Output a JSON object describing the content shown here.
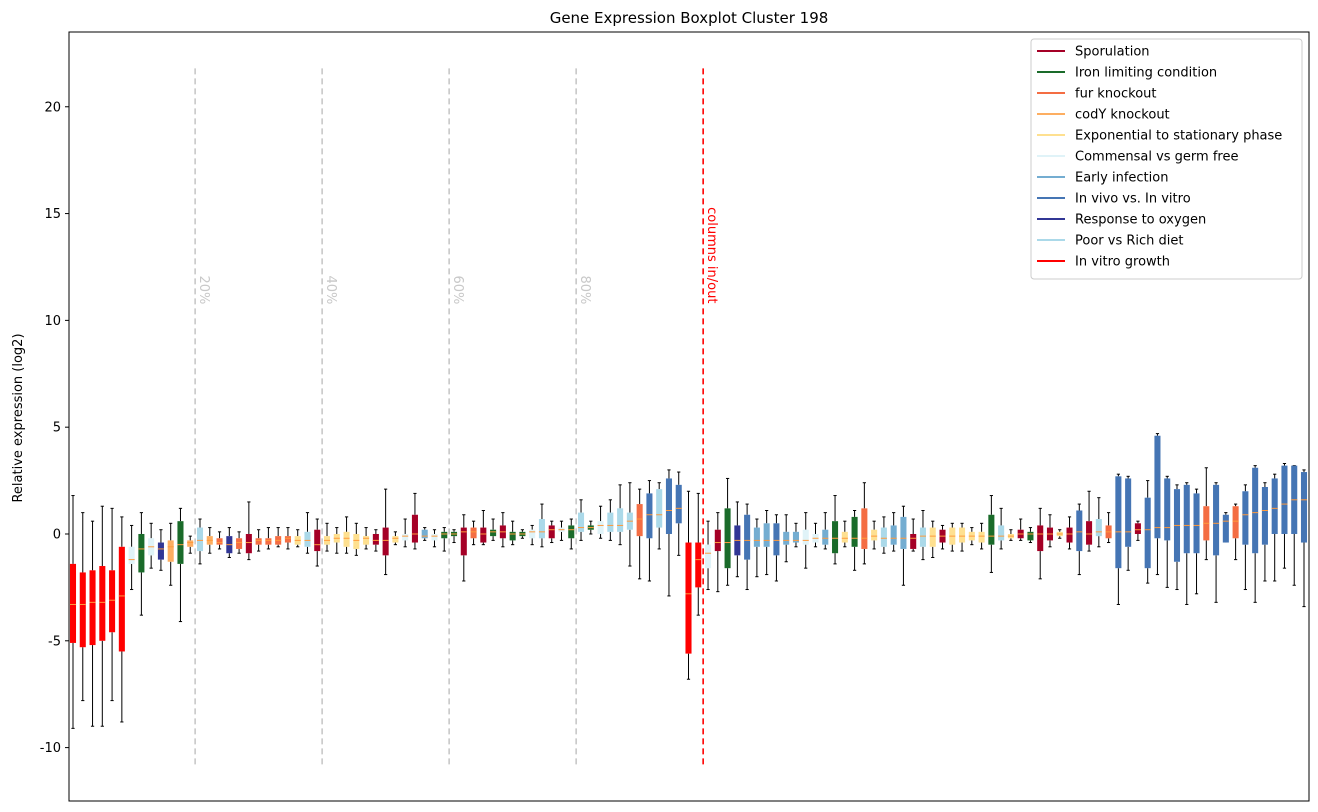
{
  "chart_data": {
    "type": "boxplot",
    "title": "Gene Expression Boxplot Cluster 198",
    "ylabel": "Relative expression (log2)",
    "xlabel": "",
    "ylim": [
      -12.5,
      23.5
    ],
    "yticks": [
      -10,
      -5,
      0,
      5,
      10,
      15,
      20
    ],
    "grid": false,
    "legend_position": "top-right",
    "legend": [
      {
        "name": "Sporulation",
        "color": "#a50026"
      },
      {
        "name": "Iron limiting condition",
        "color": "#1a6b2a"
      },
      {
        "name": "fur knockout",
        "color": "#f46d43"
      },
      {
        "name": "codY knockout",
        "color": "#fdae61"
      },
      {
        "name": "Exponential to stationary phase",
        "color": "#fee090"
      },
      {
        "name": "Commensal vs germ free",
        "color": "#e0f3f8"
      },
      {
        "name": "Early infection",
        "color": "#74add1"
      },
      {
        "name": "In vivo vs. In vitro",
        "color": "#4575b4"
      },
      {
        "name": "Response to oxygen",
        "color": "#313695"
      },
      {
        "name": "Poor vs Rich diet",
        "color": "#abd9e9"
      },
      {
        "name": "In vitro growth",
        "color": "#ff0000"
      }
    ],
    "vlines": [
      {
        "x": 12.5,
        "label": "20%",
        "color": "#c8c8c8"
      },
      {
        "x": 25.5,
        "label": "40%",
        "color": "#c8c8c8"
      },
      {
        "x": 38.5,
        "label": "60%",
        "color": "#c8c8c8"
      },
      {
        "x": 51.5,
        "label": "80%",
        "color": "#c8c8c8"
      },
      {
        "x": 64.5,
        "label": "columns in/out",
        "color": "#ff0000"
      }
    ],
    "box_values": [
      [
        -9.1,
        -5.1,
        -3.3,
        -1.4,
        1.8,
        "#ff0000"
      ],
      [
        -7.8,
        -5.3,
        -3.3,
        -1.8,
        1.0,
        "#ff0000"
      ],
      [
        -9.0,
        -5.2,
        -3.2,
        -1.7,
        0.6,
        "#ff0000"
      ],
      [
        -9.0,
        -5.0,
        -3.2,
        -1.5,
        1.3,
        "#ff0000"
      ],
      [
        -7.8,
        -4.6,
        -3.1,
        -1.7,
        1.2,
        "#ff0000"
      ],
      [
        -8.8,
        -5.5,
        -2.9,
        -0.6,
        0.8,
        "#ff0000"
      ],
      [
        -2.6,
        -1.4,
        -1.2,
        -0.6,
        0.4,
        "#e0f3f8"
      ],
      [
        -3.8,
        -1.8,
        -0.7,
        0.0,
        1.0,
        "#1a6b2a"
      ],
      [
        -1.6,
        -1.0,
        -0.6,
        -0.2,
        0.5,
        "#e0f3f8"
      ],
      [
        -1.7,
        -1.2,
        -0.7,
        -0.4,
        0.2,
        "#313695"
      ],
      [
        -2.4,
        -1.3,
        -0.6,
        -0.3,
        0.5,
        "#fdae61"
      ],
      [
        -4.1,
        -1.4,
        -0.5,
        0.6,
        1.2,
        "#1a6b2a"
      ],
      [
        -0.9,
        -0.6,
        -0.4,
        -0.3,
        -0.1,
        "#fdae61"
      ],
      [
        -1.4,
        -0.8,
        -0.3,
        0.3,
        0.7,
        "#abd9e9"
      ],
      [
        -0.9,
        -0.5,
        -0.3,
        -0.1,
        0.3,
        "#fdae61"
      ],
      [
        -0.7,
        -0.5,
        -0.4,
        -0.2,
        0.1,
        "#f46d43"
      ],
      [
        -1.1,
        -0.9,
        -0.5,
        -0.1,
        0.3,
        "#313695"
      ],
      [
        -0.9,
        -0.7,
        -0.4,
        -0.2,
        0.1,
        "#f46d43"
      ],
      [
        -1.2,
        -0.9,
        -0.4,
        0.0,
        1.5,
        "#a50026"
      ],
      [
        -0.8,
        -0.5,
        -0.3,
        -0.2,
        0.2,
        "#f46d43"
      ],
      [
        -0.7,
        -0.5,
        -0.3,
        -0.2,
        0.3,
        "#f46d43"
      ],
      [
        -0.6,
        -0.5,
        -0.3,
        -0.1,
        0.3,
        "#f46d43"
      ],
      [
        -0.7,
        -0.4,
        -0.2,
        -0.1,
        0.3,
        "#f46d43"
      ],
      [
        -0.6,
        -0.5,
        -0.3,
        -0.1,
        0.2,
        "#fee090"
      ],
      [
        -0.9,
        -0.6,
        -0.3,
        0.1,
        1.0,
        "#abd9e9"
      ],
      [
        -1.5,
        -0.8,
        -0.5,
        0.2,
        0.7,
        "#a50026"
      ],
      [
        -0.8,
        -0.5,
        -0.3,
        -0.1,
        0.5,
        "#fee090"
      ],
      [
        -0.9,
        -0.4,
        -0.2,
        0.0,
        0.3,
        "#fee090"
      ],
      [
        -0.9,
        -0.6,
        -0.2,
        0.1,
        0.8,
        "#fee090"
      ],
      [
        -1.0,
        -0.7,
        -0.3,
        0.0,
        0.5,
        "#fee090"
      ],
      [
        -0.7,
        -0.5,
        -0.2,
        -0.1,
        0.3,
        "#fee090"
      ],
      [
        -0.8,
        -0.5,
        -0.3,
        0.0,
        0.2,
        "#a50026"
      ],
      [
        -1.9,
        -1.0,
        -0.3,
        0.3,
        2.1,
        "#a50026"
      ],
      [
        -0.5,
        -0.4,
        -0.2,
        -0.1,
        0.1,
        "#fee090"
      ],
      [
        -0.6,
        -0.3,
        -0.1,
        0.0,
        0.7,
        "#e0f3f8"
      ],
      [
        -0.7,
        -0.4,
        0.0,
        0.9,
        1.9,
        "#a50026"
      ],
      [
        -0.3,
        -0.2,
        -0.1,
        0.2,
        0.3,
        "#74add1"
      ],
      [
        -0.6,
        -0.3,
        -0.1,
        0.0,
        0.2,
        "#e0f3f8"
      ],
      [
        -0.8,
        -0.2,
        0.0,
        0.1,
        0.3,
        "#1a6b2a"
      ],
      [
        -0.4,
        -0.1,
        0.0,
        0.1,
        0.2,
        "#1a6b2a"
      ],
      [
        -2.2,
        -1.0,
        0.1,
        0.3,
        0.9,
        "#a50026"
      ],
      [
        -0.5,
        -0.2,
        0.1,
        0.3,
        0.6,
        "#f46d43"
      ],
      [
        -0.5,
        -0.4,
        0.0,
        0.3,
        1.1,
        "#a50026"
      ],
      [
        -0.3,
        -0.1,
        0.1,
        0.2,
        0.7,
        "#1a6b2a"
      ],
      [
        -0.6,
        -0.2,
        0.1,
        0.4,
        1.0,
        "#a50026"
      ],
      [
        -0.5,
        -0.3,
        0.0,
        0.1,
        0.6,
        "#1a6b2a"
      ],
      [
        -0.2,
        -0.1,
        0.0,
        0.1,
        0.2,
        "#1a6b2a"
      ],
      [
        -0.5,
        -0.2,
        0.1,
        0.2,
        0.4,
        "#e0f3f8"
      ],
      [
        -0.6,
        -0.2,
        0.1,
        0.7,
        1.4,
        "#abd9e9"
      ],
      [
        -0.4,
        -0.2,
        0.2,
        0.4,
        0.6,
        "#a50026"
      ],
      [
        -0.3,
        0.1,
        0.2,
        0.3,
        0.6,
        "#e0f3f8"
      ],
      [
        -0.7,
        -0.2,
        0.2,
        0.4,
        0.7,
        "#1a6b2a"
      ],
      [
        -0.3,
        0.1,
        0.3,
        1.0,
        1.6,
        "#abd9e9"
      ],
      [
        0.0,
        0.2,
        0.3,
        0.4,
        0.6,
        "#1a6b2a"
      ],
      [
        -0.2,
        0.0,
        0.4,
        0.6,
        1.3,
        "#e0f3f8"
      ],
      [
        -0.3,
        0.1,
        0.4,
        1.0,
        1.6,
        "#abd9e9"
      ],
      [
        -0.5,
        0.1,
        0.4,
        1.2,
        2.3,
        "#abd9e9"
      ],
      [
        -1.5,
        0.2,
        0.6,
        1.0,
        2.4,
        "#abd9e9"
      ],
      [
        -2.1,
        -0.1,
        0.7,
        1.4,
        2.1,
        "#f46d43"
      ],
      [
        -2.2,
        -0.2,
        0.9,
        1.9,
        2.5,
        "#4575b4"
      ],
      [
        -0.7,
        0.3,
        0.9,
        2.1,
        2.4,
        "#abd9e9"
      ],
      [
        -2.9,
        0.0,
        1.1,
        2.6,
        3.0,
        "#4575b4"
      ],
      [
        -1.0,
        0.5,
        1.2,
        2.3,
        2.9,
        "#4575b4"
      ],
      [
        -6.8,
        -5.6,
        -2.8,
        -0.4,
        2.0,
        "#ff0000"
      ],
      [
        -3.8,
        -2.5,
        -1.2,
        -0.4,
        1.9,
        "#ff0000"
      ],
      [
        -2.6,
        -1.6,
        -0.9,
        -0.5,
        0.6,
        "#e0f3f8"
      ],
      [
        -2.7,
        -0.8,
        -0.4,
        0.2,
        1.0,
        "#a50026"
      ],
      [
        -2.4,
        -1.6,
        -0.4,
        1.2,
        2.6,
        "#1a6b2a"
      ],
      [
        -2.0,
        -1.0,
        -0.3,
        0.4,
        1.5,
        "#313695"
      ],
      [
        -2.6,
        -1.2,
        -0.3,
        0.9,
        1.4,
        "#4575b4"
      ],
      [
        -2.0,
        -0.6,
        -0.3,
        0.3,
        0.7,
        "#74add1"
      ],
      [
        -1.9,
        -0.6,
        -0.3,
        0.5,
        1.1,
        "#74add1"
      ],
      [
        -2.2,
        -1.0,
        -0.3,
        0.5,
        0.9,
        "#4575b4"
      ],
      [
        -1.3,
        -0.5,
        -0.3,
        0.1,
        0.9,
        "#74add1"
      ],
      [
        -0.6,
        -0.4,
        -0.3,
        0.1,
        0.5,
        "#74add1"
      ],
      [
        -1.6,
        -0.5,
        -0.3,
        0.2,
        1.0,
        "#e0f3f8"
      ],
      [
        -0.6,
        -0.4,
        -0.2,
        0.0,
        0.5,
        "#e0f3f8"
      ],
      [
        -0.7,
        -0.5,
        -0.2,
        0.2,
        1.0,
        "#74add1"
      ],
      [
        -1.4,
        -0.9,
        -0.2,
        0.6,
        1.8,
        "#1a6b2a"
      ],
      [
        -0.6,
        -0.4,
        -0.2,
        0.1,
        0.6,
        "#fee090"
      ],
      [
        -1.7,
        -0.6,
        -0.2,
        0.8,
        1.1,
        "#1a6b2a"
      ],
      [
        -1.4,
        -0.7,
        -0.2,
        1.2,
        2.4,
        "#f46d43"
      ],
      [
        -0.7,
        -0.3,
        -0.1,
        0.2,
        0.6,
        "#fee090"
      ],
      [
        -0.9,
        -0.6,
        -0.2,
        0.3,
        0.8,
        "#abd9e9"
      ],
      [
        -0.8,
        -0.5,
        -0.2,
        0.4,
        1.0,
        "#74add1"
      ],
      [
        -2.4,
        -0.7,
        -0.2,
        0.8,
        1.3,
        "#74add1"
      ],
      [
        -0.8,
        -0.7,
        -0.2,
        0.0,
        0.7,
        "#a50026"
      ],
      [
        -1.2,
        -0.6,
        -0.1,
        0.3,
        1.1,
        "#abd9e9"
      ],
      [
        -1.1,
        -0.6,
        -0.1,
        0.3,
        0.6,
        "#fee090"
      ],
      [
        -0.7,
        -0.4,
        -0.1,
        0.2,
        0.4,
        "#a50026"
      ],
      [
        -0.8,
        -0.5,
        -0.1,
        0.3,
        0.5,
        "#fee090"
      ],
      [
        -0.8,
        -0.4,
        -0.1,
        0.3,
        0.5,
        "#fee090"
      ],
      [
        -0.5,
        -0.3,
        -0.1,
        0.1,
        0.3,
        "#fee090"
      ],
      [
        -0.7,
        -0.4,
        -0.1,
        0.1,
        0.5,
        "#fee090"
      ],
      [
        -1.8,
        -0.5,
        -0.1,
        0.9,
        1.8,
        "#1a6b2a"
      ],
      [
        -0.7,
        -0.3,
        -0.1,
        0.4,
        1.2,
        "#abd9e9"
      ],
      [
        -0.3,
        -0.2,
        -0.1,
        0.0,
        0.2,
        "#fee090"
      ],
      [
        -0.3,
        -0.2,
        0.0,
        0.2,
        0.7,
        "#a50026"
      ],
      [
        -0.4,
        -0.3,
        0.0,
        0.1,
        0.3,
        "#1a6b2a"
      ],
      [
        -2.1,
        -0.8,
        0.0,
        0.4,
        1.2,
        "#a50026"
      ],
      [
        -0.6,
        -0.3,
        0.0,
        0.3,
        0.9,
        "#a50026"
      ],
      [
        -0.2,
        -0.1,
        0.0,
        0.1,
        0.2,
        "#fee090"
      ],
      [
        -0.7,
        -0.4,
        0.0,
        0.3,
        0.8,
        "#a50026"
      ],
      [
        -1.9,
        -0.8,
        0.1,
        1.1,
        1.4,
        "#4575b4"
      ],
      [
        -0.8,
        -0.5,
        0.0,
        0.6,
        2.0,
        "#a50026"
      ],
      [
        -0.6,
        -0.1,
        0.1,
        0.7,
        1.7,
        "#abd9e9"
      ],
      [
        -0.4,
        -0.2,
        0.1,
        0.4,
        1.0,
        "#f46d43"
      ],
      [
        -3.3,
        -1.6,
        0.1,
        2.7,
        2.8,
        "#4575b4"
      ],
      [
        -1.7,
        -0.6,
        0.1,
        2.6,
        2.7,
        "#4575b4"
      ],
      [
        -0.3,
        0.0,
        0.2,
        0.5,
        0.6,
        "#a50026"
      ],
      [
        -2.3,
        -1.6,
        0.2,
        1.7,
        2.5,
        "#4575b4"
      ],
      [
        -1.9,
        -0.2,
        0.3,
        4.6,
        4.7,
        "#4575b4"
      ],
      [
        -2.5,
        -0.3,
        0.3,
        2.6,
        2.7,
        "#4575b4"
      ],
      [
        -2.6,
        -1.3,
        0.4,
        2.1,
        2.3,
        "#4575b4"
      ],
      [
        -3.3,
        -0.9,
        0.4,
        2.3,
        2.4,
        "#4575b4"
      ],
      [
        -2.8,
        -0.9,
        0.4,
        1.9,
        2.1,
        "#4575b4"
      ],
      [
        -1.2,
        -0.3,
        0.5,
        1.3,
        3.1,
        "#f46d43"
      ],
      [
        -3.2,
        -1.0,
        0.5,
        2.3,
        2.4,
        "#4575b4"
      ],
      [
        -0.3,
        -0.4,
        0.6,
        0.9,
        1.0,
        "#4575b4"
      ],
      [
        -1.2,
        -0.2,
        0.6,
        1.3,
        1.4,
        "#f46d43"
      ],
      [
        -2.6,
        -0.5,
        0.9,
        2.0,
        2.3,
        "#4575b4"
      ],
      [
        -3.2,
        -0.9,
        1.0,
        3.1,
        3.2,
        "#4575b4"
      ],
      [
        -2.2,
        -0.5,
        1.1,
        2.2,
        2.4,
        "#4575b4"
      ],
      [
        -2.2,
        0.0,
        1.2,
        2.6,
        2.8,
        "#4575b4"
      ],
      [
        -1.6,
        0.0,
        1.4,
        3.2,
        3.3,
        "#4575b4"
      ],
      [
        -2.4,
        0.0,
        1.6,
        3.2,
        3.2,
        "#4575b4"
      ],
      [
        -3.4,
        -0.4,
        1.6,
        2.9,
        3.0,
        "#4575b4"
      ]
    ]
  }
}
